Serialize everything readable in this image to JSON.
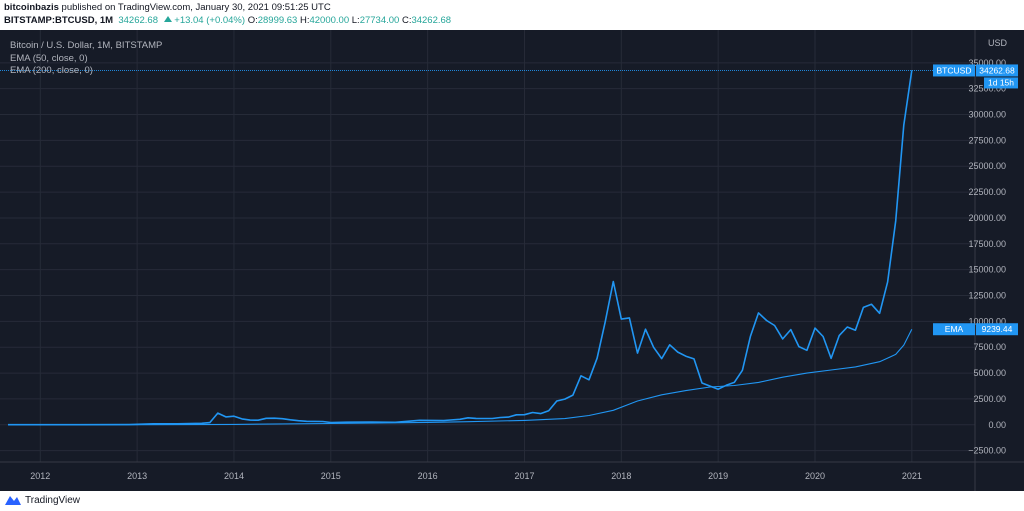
{
  "header": {
    "author": "bitcoinbazis",
    "published_text": "published on TradingView.com, January 30, 2021 09:51:25 UTC",
    "symbol": "BITSTAMP:BTCUSD, 1M",
    "last": "34262.68",
    "change": "+13.04 (+0.04%)",
    "o_label": "O:",
    "o_value": "28999.63",
    "h_label": "H:",
    "h_value": "42000.00",
    "l_label": "L:",
    "l_value": "27734.00",
    "c_label": "C:",
    "c_value": "34262.68"
  },
  "legend": {
    "line1": "Bitcoin / U.S. Dollar, 1M, BITSTAMP",
    "line2": "EMA (50, close, 0)",
    "line3": "EMA (200, close, 0)"
  },
  "footer": {
    "brand": "TradingView"
  },
  "colors": {
    "background": "#161b27",
    "price_line": "#2196f3",
    "ema_line": "#2196f3",
    "grid": "#262b38",
    "axis_text": "#b2b5be",
    "label_bg": "#2196f3",
    "up": "#26a69a"
  },
  "chart_data": {
    "type": "line",
    "title": "Bitcoin / U.S. Dollar, 1M, BITSTAMP",
    "currency_label": "USD",
    "ylim": [
      -3600,
      37400
    ],
    "y_ticks": [
      -2500,
      0,
      2500,
      5000,
      7500,
      10000,
      12500,
      15000,
      17500,
      20000,
      22500,
      25000,
      27500,
      30000,
      32500,
      35000
    ],
    "y_tick_labels": [
      "−2500.00",
      "0.00",
      "2500.00",
      "5000.00",
      "7500.00",
      "10000.00",
      "12500.00",
      "15000.00",
      "17500.00",
      "20000.00",
      "22500.00",
      "25000.00",
      "27500.00",
      "30000.00",
      "32500.00",
      "35000.00"
    ],
    "x_tick_labels": [
      {
        "label": "2012",
        "date": "2012-01"
      },
      {
        "label": "2013",
        "date": "2013-01"
      },
      {
        "label": "2014",
        "date": "2014-01"
      },
      {
        "label": "2015",
        "date": "2015-01"
      },
      {
        "label": "2016",
        "date": "2016-01"
      },
      {
        "label": "2017",
        "date": "2017-01"
      },
      {
        "label": "2018",
        "date": "2018-01"
      },
      {
        "label": "2019",
        "date": "2019-01"
      },
      {
        "label": "2020",
        "date": "2020-01"
      },
      {
        "label": "2021",
        "date": "2021-01"
      }
    ],
    "grid": true,
    "series": [
      {
        "name": "BTCUSD",
        "points": [
          [
            "2011-09",
            5
          ],
          [
            "2011-12",
            4
          ],
          [
            "2012-06",
            6
          ],
          [
            "2012-12",
            13
          ],
          [
            "2013-03",
            93
          ],
          [
            "2013-06",
            97
          ],
          [
            "2013-09",
            140
          ],
          [
            "2013-10",
            210
          ],
          [
            "2013-11",
            1130
          ],
          [
            "2013-12",
            760
          ],
          [
            "2014-01",
            830
          ],
          [
            "2014-02",
            570
          ],
          [
            "2014-03",
            450
          ],
          [
            "2014-04",
            440
          ],
          [
            "2014-05",
            630
          ],
          [
            "2014-06",
            640
          ],
          [
            "2014-07",
            590
          ],
          [
            "2014-08",
            480
          ],
          [
            "2014-09",
            390
          ],
          [
            "2014-10",
            340
          ],
          [
            "2014-12",
            320
          ],
          [
            "2015-01",
            220
          ],
          [
            "2015-03",
            250
          ],
          [
            "2015-06",
            260
          ],
          [
            "2015-09",
            236
          ],
          [
            "2015-12",
            430
          ],
          [
            "2016-03",
            415
          ],
          [
            "2016-05",
            530
          ],
          [
            "2016-06",
            670
          ],
          [
            "2016-07",
            620
          ],
          [
            "2016-09",
            610
          ],
          [
            "2016-10",
            700
          ],
          [
            "2016-11",
            740
          ],
          [
            "2016-12",
            960
          ],
          [
            "2017-01",
            970
          ],
          [
            "2017-02",
            1190
          ],
          [
            "2017-03",
            1080
          ],
          [
            "2017-04",
            1350
          ],
          [
            "2017-05",
            2300
          ],
          [
            "2017-06",
            2480
          ],
          [
            "2017-07",
            2870
          ],
          [
            "2017-08",
            4740
          ],
          [
            "2017-09",
            4350
          ],
          [
            "2017-10",
            6440
          ],
          [
            "2017-11",
            9950
          ],
          [
            "2017-12",
            13850
          ],
          [
            "2018-01",
            10220
          ],
          [
            "2018-02",
            10330
          ],
          [
            "2018-03",
            6930
          ],
          [
            "2018-04",
            9240
          ],
          [
            "2018-05",
            7490
          ],
          [
            "2018-06",
            6400
          ],
          [
            "2018-07",
            7730
          ],
          [
            "2018-08",
            7030
          ],
          [
            "2018-09",
            6630
          ],
          [
            "2018-10",
            6370
          ],
          [
            "2018-11",
            4040
          ],
          [
            "2018-12",
            3740
          ],
          [
            "2019-01",
            3440
          ],
          [
            "2019-02",
            3820
          ],
          [
            "2019-03",
            4100
          ],
          [
            "2019-04",
            5270
          ],
          [
            "2019-05",
            8550
          ],
          [
            "2019-06",
            10820
          ],
          [
            "2019-07",
            10080
          ],
          [
            "2019-08",
            9600
          ],
          [
            "2019-09",
            8300
          ],
          [
            "2019-10",
            9200
          ],
          [
            "2019-11",
            7560
          ],
          [
            "2019-12",
            7200
          ],
          [
            "2020-01",
            9350
          ],
          [
            "2020-02",
            8540
          ],
          [
            "2020-03",
            6420
          ],
          [
            "2020-04",
            8620
          ],
          [
            "2020-05",
            9450
          ],
          [
            "2020-06",
            9140
          ],
          [
            "2020-07",
            11350
          ],
          [
            "2020-08",
            11650
          ],
          [
            "2020-09",
            10780
          ],
          [
            "2020-10",
            13800
          ],
          [
            "2020-11",
            19700
          ],
          [
            "2020-12",
            28990
          ],
          [
            "2021-01",
            34262.68
          ]
        ]
      },
      {
        "name": "EMA",
        "points": [
          [
            "2011-09",
            5
          ],
          [
            "2013-01",
            10
          ],
          [
            "2014-01",
            40
          ],
          [
            "2015-01",
            120
          ],
          [
            "2016-01",
            230
          ],
          [
            "2016-06",
            300
          ],
          [
            "2017-01",
            420
          ],
          [
            "2017-06",
            600
          ],
          [
            "2017-09",
            900
          ],
          [
            "2017-12",
            1400
          ],
          [
            "2018-03",
            2300
          ],
          [
            "2018-06",
            2900
          ],
          [
            "2018-09",
            3300
          ],
          [
            "2018-12",
            3650
          ],
          [
            "2019-03",
            3800
          ],
          [
            "2019-06",
            4100
          ],
          [
            "2019-09",
            4600
          ],
          [
            "2019-12",
            5000
          ],
          [
            "2020-03",
            5300
          ],
          [
            "2020-06",
            5600
          ],
          [
            "2020-09",
            6100
          ],
          [
            "2020-10",
            6450
          ],
          [
            "2020-11",
            6800
          ],
          [
            "2020-12",
            7700
          ],
          [
            "2021-01",
            9239.44
          ]
        ]
      }
    ],
    "price_label": {
      "name": "BTCUSD",
      "value": "34262.68",
      "sub": "1d 15h"
    },
    "ema_label": {
      "name": "EMA",
      "value": "9239.44"
    }
  }
}
